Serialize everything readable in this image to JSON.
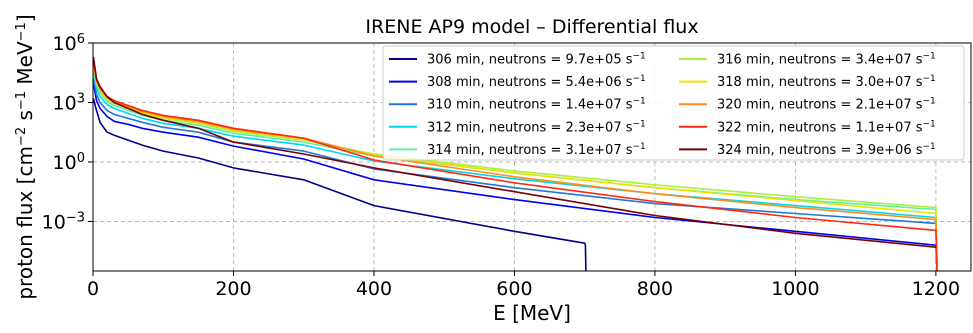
{
  "chart_data": {
    "type": "line",
    "title": "IRENE AP9 model – Differential flux",
    "xlabel": "E [MeV]",
    "ylabel_parts": {
      "base": "proton flux [cm",
      "exp1": "−2",
      "mid": " s",
      "exp2": "−1",
      "mid2": " MeV",
      "exp3": "−1",
      "end": "]"
    },
    "xlim": [
      0,
      1250
    ],
    "ylim_log10": [
      -5.5,
      6
    ],
    "y_scale": "log",
    "grid": true,
    "legend_position": "upper-right",
    "legend_columns": 2,
    "x_ticks": [
      {
        "value": 0,
        "label": "0"
      },
      {
        "value": 200,
        "label": "200"
      },
      {
        "value": 400,
        "label": "400"
      },
      {
        "value": 600,
        "label": "600"
      },
      {
        "value": 800,
        "label": "800"
      },
      {
        "value": 1000,
        "label": "1000"
      },
      {
        "value": 1200,
        "label": "1200"
      }
    ],
    "y_ticks": [
      {
        "exp": 6,
        "base": "10",
        "sup": "6"
      },
      {
        "exp": 3,
        "base": "10",
        "sup": "3"
      },
      {
        "exp": 0,
        "base": "10",
        "sup": "0"
      },
      {
        "exp": -3,
        "base": "10",
        "sup": "−3"
      }
    ],
    "series": [
      {
        "name": "306 min, neutrons = 9.7e+05 s",
        "sup": "−1",
        "color": "#00008b",
        "x": [
          0.5,
          5,
          10,
          20,
          30,
          50,
          70,
          100,
          150,
          200,
          300,
          400,
          600,
          700,
          701,
          702
        ],
        "y_log10": [
          3.2,
          2.6,
          2.0,
          1.5,
          1.35,
          1.1,
          0.85,
          0.55,
          0.2,
          -0.3,
          -0.9,
          -2.2,
          -3.5,
          -4.1,
          -4.2,
          -6.0
        ]
      },
      {
        "name": "308 min, neutrons = 5.4e+06 s",
        "sup": "−1",
        "color": "#0000ee",
        "x": [
          0.5,
          5,
          10,
          20,
          30,
          50,
          70,
          100,
          150,
          200,
          300,
          400,
          600,
          800,
          1000,
          1200,
          1202
        ],
        "y_log10": [
          4.0,
          3.1,
          2.7,
          2.3,
          2.05,
          1.9,
          1.7,
          1.5,
          1.25,
          0.8,
          0.15,
          -0.9,
          -1.9,
          -2.8,
          -3.5,
          -4.2,
          -6.0
        ]
      },
      {
        "name": "310 min, neutrons = 1.4e+07 s",
        "sup": "−1",
        "color": "#1f78d8",
        "x": [
          0.5,
          5,
          10,
          20,
          30,
          50,
          70,
          100,
          150,
          200,
          300,
          400,
          600,
          800,
          1000,
          1200,
          1202
        ],
        "y_log10": [
          4.2,
          3.4,
          3.0,
          2.6,
          2.4,
          2.2,
          2.0,
          1.75,
          1.5,
          1.0,
          0.55,
          -0.35,
          -1.3,
          -2.1,
          -2.6,
          -3.1,
          -6.0
        ]
      },
      {
        "name": "312 min, neutrons = 2.3e+07 s",
        "sup": "−1",
        "color": "#00d8f0",
        "x": [
          0.5,
          5,
          10,
          20,
          30,
          50,
          70,
          100,
          150,
          200,
          300,
          400,
          600,
          800,
          1000,
          1200,
          1202
        ],
        "y_log10": [
          4.6,
          3.7,
          3.3,
          2.9,
          2.7,
          2.45,
          2.2,
          1.95,
          1.7,
          1.3,
          0.85,
          0.05,
          -0.85,
          -1.6,
          -2.2,
          -2.8,
          -6.0
        ]
      },
      {
        "name": "314 min, neutrons = 3.1e+07 s",
        "sup": "−1",
        "color": "#60f0a0",
        "x": [
          0.5,
          5,
          10,
          20,
          30,
          50,
          70,
          100,
          150,
          200,
          300,
          400,
          600,
          800,
          1000,
          1200,
          1202
        ],
        "y_log10": [
          4.8,
          3.9,
          3.5,
          3.05,
          2.85,
          2.6,
          2.35,
          2.1,
          1.85,
          1.45,
          1.0,
          0.3,
          -0.55,
          -1.3,
          -1.9,
          -2.4,
          -6.0
        ]
      },
      {
        "name": "316 min, neutrons = 3.4e+07 s",
        "sup": "−1",
        "color": "#a8f040",
        "x": [
          0.5,
          5,
          10,
          20,
          30,
          50,
          70,
          100,
          150,
          200,
          300,
          400,
          600,
          800,
          1000,
          1200,
          1202
        ],
        "y_log10": [
          4.9,
          4.0,
          3.6,
          3.15,
          2.95,
          2.7,
          2.45,
          2.2,
          1.95,
          1.55,
          1.1,
          0.4,
          -0.45,
          -1.15,
          -1.75,
          -2.3,
          -6.0
        ]
      },
      {
        "name": "318 min, neutrons = 3.0e+07 s",
        "sup": "−1",
        "color": "#f0e000",
        "x": [
          0.5,
          5,
          10,
          20,
          30,
          50,
          70,
          100,
          150,
          200,
          300,
          400,
          600,
          800,
          1000,
          1200,
          1202
        ],
        "y_log10": [
          5.0,
          4.05,
          3.65,
          3.2,
          3.0,
          2.75,
          2.5,
          2.25,
          2.0,
          1.6,
          1.15,
          0.35,
          -0.55,
          -1.3,
          -1.95,
          -2.6,
          -6.0
        ]
      },
      {
        "name": "320 min, neutrons = 2.1e+07 s",
        "sup": "−1",
        "color": "#ff8c1a",
        "x": [
          0.5,
          5,
          10,
          20,
          30,
          50,
          70,
          100,
          150,
          200,
          300,
          400,
          600,
          800,
          1000,
          1200,
          1202
        ],
        "y_log10": [
          5.1,
          4.1,
          3.7,
          3.25,
          3.05,
          2.8,
          2.55,
          2.3,
          2.05,
          1.65,
          1.2,
          0.3,
          -0.75,
          -1.6,
          -2.3,
          -2.9,
          -6.0
        ]
      },
      {
        "name": "322 min, neutrons = 1.1e+07 s",
        "sup": "−1",
        "color": "#ff2a10",
        "x": [
          0.5,
          5,
          10,
          20,
          30,
          50,
          70,
          100,
          150,
          200,
          300,
          400,
          600,
          800,
          1000,
          1200,
          1202
        ],
        "y_log10": [
          5.2,
          4.15,
          3.75,
          3.3,
          3.1,
          2.85,
          2.6,
          2.35,
          2.1,
          1.7,
          1.2,
          0.1,
          -1.05,
          -2.0,
          -2.8,
          -3.45,
          -6.0
        ]
      },
      {
        "name": "324 min, neutrons = 3.9e+06 s",
        "sup": "−1",
        "color": "#7a0000",
        "x": [
          0.5,
          5,
          10,
          20,
          30,
          50,
          70,
          100,
          150,
          200,
          300,
          400,
          600,
          800,
          1000,
          1200
        ],
        "y_log10": [
          5.3,
          4.2,
          3.8,
          3.3,
          3.0,
          2.7,
          2.4,
          2.1,
          1.7,
          1.0,
          0.4,
          -0.3,
          -1.5,
          -2.7,
          -3.6,
          -4.3
        ]
      }
    ]
  }
}
